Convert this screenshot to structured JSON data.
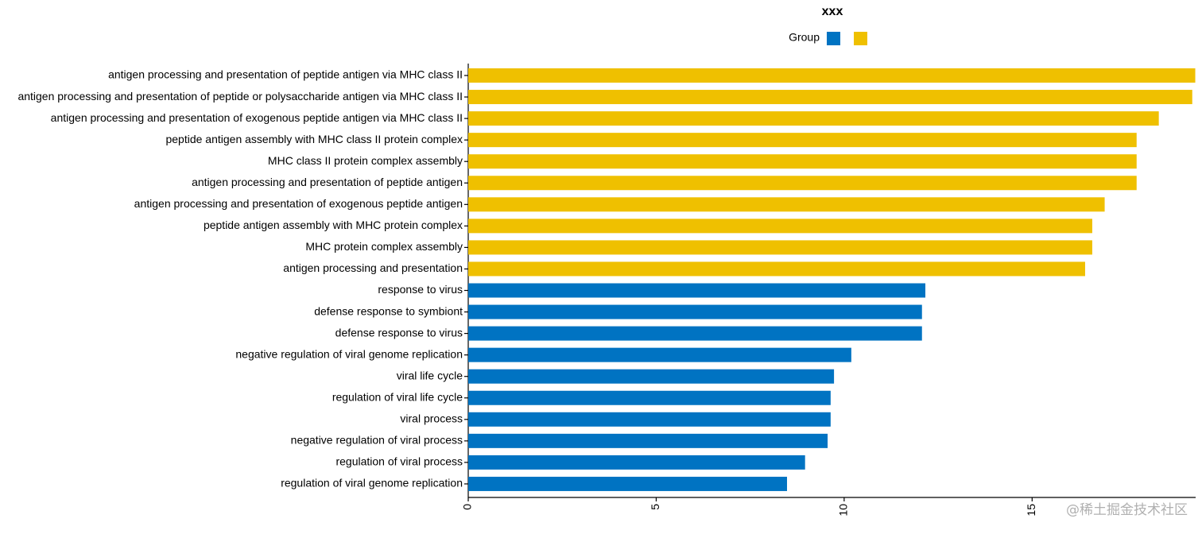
{
  "chart_data": {
    "type": "bar",
    "orientation": "horizontal",
    "title": "xxx",
    "legend_title": "Group",
    "categories": [
      "antigen processing and presentation of peptide antigen via MHC class II",
      "antigen processing and presentation of peptide or polysaccharide antigen via MHC class II",
      "antigen processing and presentation of exogenous peptide antigen via MHC class II",
      "peptide antigen assembly with MHC class II protein complex",
      "MHC class II protein complex assembly",
      "antigen processing and presentation of peptide antigen",
      "antigen processing and presentation of exogenous peptide antigen",
      "peptide antigen assembly with MHC protein complex",
      "MHC protein complex assembly",
      "antigen processing and presentation",
      "response to virus",
      "defense response to symbiont",
      "defense response to virus",
      "negative regulation of viral genome replication",
      "viral life cycle",
      "regulation of viral life cycle",
      "viral process",
      "negative regulation of viral process",
      "regulation of viral process",
      "regulation of viral genome replication"
    ],
    "series": [
      {
        "color": "#0073c2",
        "values": [
          null,
          null,
          null,
          null,
          null,
          null,
          null,
          null,
          null,
          null,
          12.16,
          12.07,
          12.07,
          10.19,
          9.73,
          9.64,
          9.64,
          9.56,
          8.96,
          8.48
        ]
      },
      {
        "color": "#efc000",
        "values": [
          19.34,
          19.26,
          18.37,
          17.78,
          17.78,
          17.78,
          16.93,
          16.6,
          16.6,
          16.41,
          null,
          null,
          null,
          null,
          null,
          null,
          null,
          null,
          null,
          null
        ]
      }
    ],
    "xlim": [
      0,
      19.35
    ],
    "xticks": [
      0,
      5,
      10,
      15
    ],
    "grid": false,
    "watermark": "@稀土掘金技术社区"
  }
}
